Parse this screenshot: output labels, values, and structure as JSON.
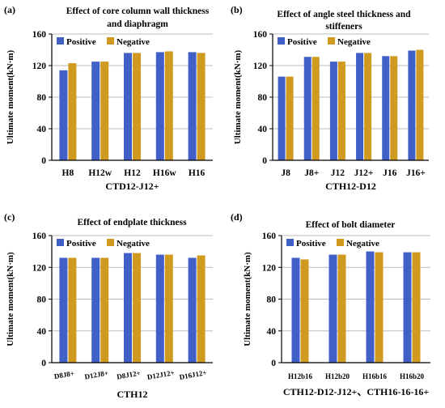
{
  "colors": {
    "positive": "#4060c8",
    "negative": "#d09a20",
    "grid": "#bbbbbb",
    "axis": "#000000"
  },
  "chart_data": [
    {
      "letter": "(a)",
      "type": "bar",
      "title_lines": [
        "Effect of core column wall thickness",
        "and diaphragm"
      ],
      "xlabel": "CTD12-J12+",
      "ylabel": "Ultimate moment(kN·m)",
      "ylim": [
        0,
        160
      ],
      "yticks": [
        "0",
        "40",
        "80",
        "120",
        "160"
      ],
      "categories": [
        "H8",
        "H12w",
        "H12",
        "H16w",
        "H16"
      ],
      "series": [
        {
          "name": "Positive",
          "values": [
            114,
            125,
            136,
            137,
            137
          ]
        },
        {
          "name": "Negative",
          "values": [
            123,
            125,
            136,
            138,
            136
          ]
        }
      ],
      "grid": true,
      "legend": "top-left"
    },
    {
      "letter": "(b)",
      "type": "bar",
      "title_lines": [
        "Effect of angle steel thickness and",
        "stiffeners"
      ],
      "xlabel": "CTH12-D12",
      "ylabel": "Ultimate moment(kN·m)",
      "ylim": [
        0,
        160
      ],
      "yticks": [
        "0",
        "40",
        "80",
        "120",
        "160"
      ],
      "categories": [
        "J8",
        "J8+",
        "J12",
        "J12+",
        "J16",
        "J16+"
      ],
      "series": [
        {
          "name": "Positive",
          "values": [
            106,
            131,
            125,
            136,
            132,
            139
          ]
        },
        {
          "name": "Negative",
          "values": [
            106,
            131,
            125,
            136,
            132,
            140
          ]
        }
      ],
      "grid": true,
      "legend": "top-left"
    },
    {
      "letter": "(c)",
      "type": "bar",
      "title_lines": [
        "Effect of endplate thickness"
      ],
      "xlabel": "CTH12",
      "ylabel": "Ultimate moment(kN·m)",
      "ylim": [
        0,
        160
      ],
      "yticks": [
        "0",
        "40",
        "80",
        "120",
        "160"
      ],
      "categories": [
        "D8J8+",
        "D12J8+",
        "D8J12+",
        "D12J12+",
        "D16J12+"
      ],
      "series": [
        {
          "name": "Positive",
          "values": [
            132,
            132,
            138,
            136,
            132
          ]
        },
        {
          "name": "Negative",
          "values": [
            132,
            132,
            138,
            136,
            135
          ]
        }
      ],
      "grid": true,
      "legend": "top-left"
    },
    {
      "letter": "(d)",
      "type": "bar",
      "title_lines": [
        "Effect of bolt diameter"
      ],
      "xlabel": "CTH12-D12-J12+、CTH16-16-16+",
      "ylabel": "Ultimate moment(kN·m)",
      "ylim": [
        0,
        160
      ],
      "yticks": [
        "0",
        "40",
        "80",
        "120",
        "160"
      ],
      "categories": [
        "H12b16",
        "H12b20",
        "H16b16",
        "H16b20"
      ],
      "series": [
        {
          "name": "Positive",
          "values": [
            132,
            136,
            140,
            139
          ]
        },
        {
          "name": "Negative",
          "values": [
            130,
            136,
            139,
            139
          ]
        }
      ],
      "grid": true,
      "legend": "top-left"
    }
  ]
}
